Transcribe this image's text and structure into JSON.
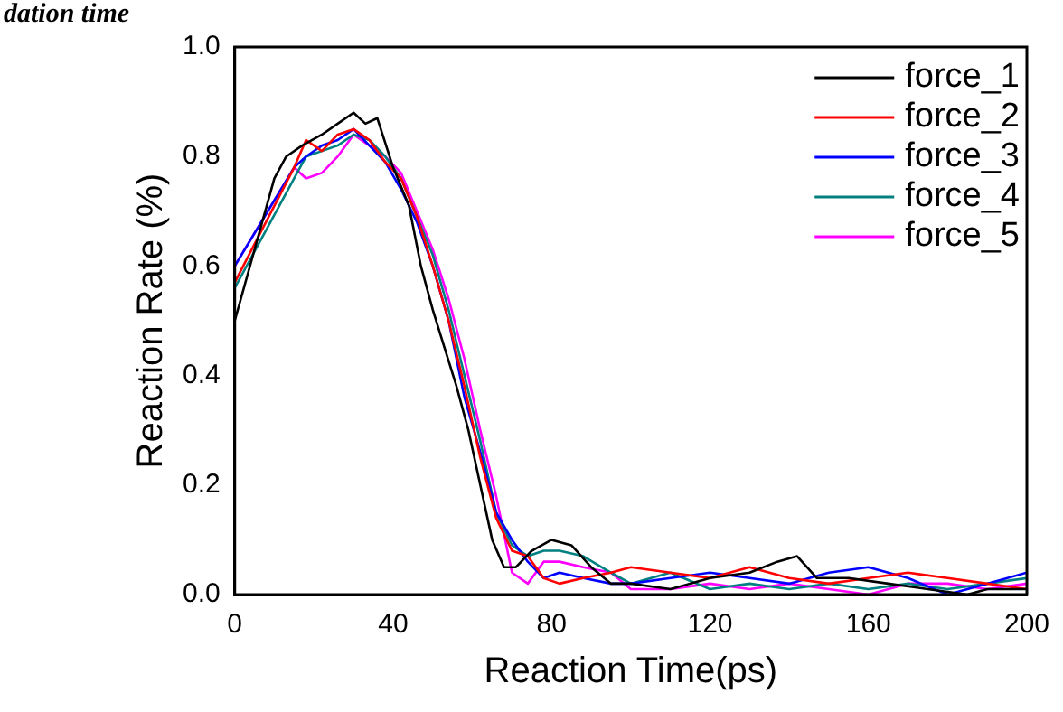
{
  "chart_data": {
    "type": "line",
    "xlabel": "Reaction Time(ps)",
    "ylabel": "Reaction Rate (%)",
    "annotations": [
      "dation time"
    ],
    "xlim": [
      0,
      200
    ],
    "xticks": [
      0,
      40,
      80,
      120,
      160,
      200
    ],
    "ylim": [
      0,
      1.0
    ],
    "yticks": [
      {
        "value": 0,
        "label": "0.0"
      },
      0.2,
      0.4,
      0.6,
      0.8,
      {
        "value": 1,
        "label": "1.0"
      }
    ],
    "grid": false,
    "legend": "top right",
    "marker": "none",
    "line_style": "solid",
    "series": [
      {
        "name": "force_1",
        "color": "#000000",
        "x": [
          0,
          10,
          13,
          17,
          22,
          26,
          30,
          33,
          36,
          40,
          44,
          47,
          50,
          53,
          56,
          59,
          62,
          65,
          68,
          71,
          75,
          80,
          85,
          90,
          95,
          100,
          110,
          120,
          130,
          137,
          142,
          147,
          155,
          165,
          175,
          185,
          190,
          200
        ],
        "values": [
          0.5,
          0.76,
          0.8,
          0.82,
          0.84,
          0.86,
          0.88,
          0.86,
          0.87,
          0.78,
          0.71,
          0.6,
          0.52,
          0.45,
          0.38,
          0.3,
          0.2,
          0.1,
          0.05,
          0.05,
          0.08,
          0.1,
          0.09,
          0.05,
          0.02,
          0.02,
          0.01,
          0.03,
          0.04,
          0.06,
          0.07,
          0.03,
          0.03,
          0.02,
          0.01,
          0.0,
          0.01,
          0.01
        ]
      },
      {
        "name": "force_2",
        "color": "#ff0000",
        "x": [
          0,
          15,
          18,
          22,
          26,
          30,
          34,
          38,
          42,
          46,
          50,
          54,
          58,
          62,
          66,
          70,
          74,
          78,
          82,
          88,
          95,
          100,
          110,
          120,
          130,
          140,
          150,
          160,
          170,
          180,
          190,
          200
        ],
        "values": [
          0.57,
          0.78,
          0.83,
          0.81,
          0.84,
          0.85,
          0.83,
          0.79,
          0.76,
          0.69,
          0.6,
          0.5,
          0.38,
          0.25,
          0.14,
          0.08,
          0.07,
          0.03,
          0.02,
          0.03,
          0.04,
          0.05,
          0.04,
          0.03,
          0.05,
          0.03,
          0.02,
          0.03,
          0.04,
          0.03,
          0.02,
          0.01
        ]
      },
      {
        "name": "force_3",
        "color": "#0000ff",
        "x": [
          0,
          15,
          18,
          22,
          26,
          30,
          34,
          38,
          42,
          46,
          50,
          54,
          58,
          62,
          66,
          70,
          74,
          78,
          82,
          88,
          95,
          100,
          110,
          120,
          130,
          140,
          150,
          160,
          170,
          180,
          190,
          200
        ],
        "values": [
          0.6,
          0.78,
          0.8,
          0.82,
          0.83,
          0.85,
          0.82,
          0.79,
          0.74,
          0.68,
          0.6,
          0.5,
          0.36,
          0.26,
          0.15,
          0.1,
          0.06,
          0.03,
          0.04,
          0.03,
          0.02,
          0.02,
          0.03,
          0.04,
          0.03,
          0.02,
          0.04,
          0.05,
          0.03,
          0.0,
          0.02,
          0.04
        ]
      },
      {
        "name": "force_4",
        "color": "#008080",
        "x": [
          0,
          15,
          18,
          22,
          26,
          30,
          34,
          38,
          42,
          46,
          50,
          54,
          58,
          62,
          66,
          70,
          74,
          78,
          82,
          88,
          95,
          100,
          110,
          120,
          130,
          140,
          150,
          160,
          170,
          180,
          190,
          200
        ],
        "values": [
          0.56,
          0.76,
          0.8,
          0.81,
          0.82,
          0.84,
          0.83,
          0.8,
          0.76,
          0.69,
          0.62,
          0.52,
          0.4,
          0.28,
          0.15,
          0.09,
          0.07,
          0.08,
          0.08,
          0.07,
          0.04,
          0.02,
          0.04,
          0.01,
          0.02,
          0.01,
          0.02,
          0.01,
          0.02,
          0.01,
          0.02,
          0.03
        ]
      },
      {
        "name": "force_5",
        "color": "#ff00ff",
        "x": [
          0,
          15,
          18,
          22,
          26,
          30,
          34,
          38,
          42,
          46,
          50,
          54,
          58,
          62,
          66,
          70,
          74,
          78,
          82,
          88,
          95,
          100,
          110,
          120,
          130,
          140,
          150,
          160,
          170,
          180,
          190,
          200
        ],
        "values": [
          0.6,
          0.78,
          0.76,
          0.77,
          0.8,
          0.84,
          0.82,
          0.8,
          0.77,
          0.7,
          0.63,
          0.54,
          0.43,
          0.3,
          0.18,
          0.04,
          0.02,
          0.06,
          0.06,
          0.05,
          0.04,
          0.01,
          0.01,
          0.02,
          0.01,
          0.02,
          0.01,
          0.0,
          0.02,
          0.02,
          0.01,
          0.02
        ]
      }
    ]
  }
}
